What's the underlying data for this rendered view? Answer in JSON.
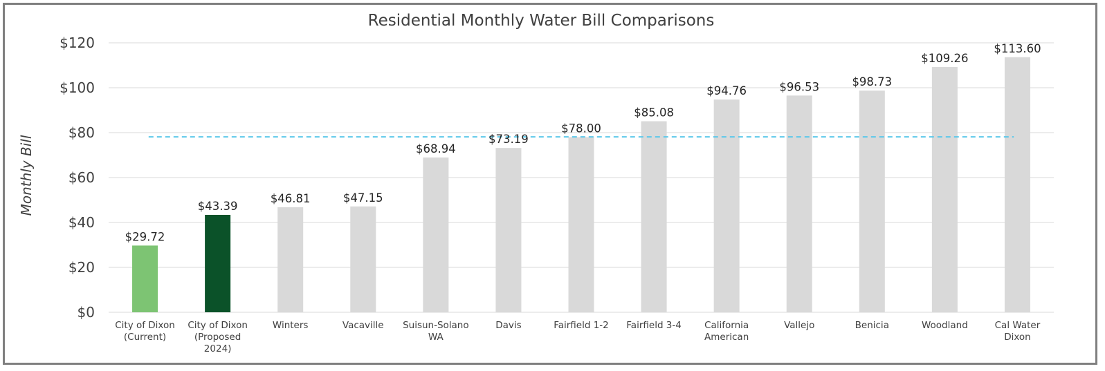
{
  "chart_data": {
    "type": "bar",
    "title": "Residential Monthly Water Bill Comparisons",
    "ylabel": "Monthly Bill",
    "xlabel": "",
    "ylim": [
      0,
      120
    ],
    "yticks": [
      0,
      20,
      40,
      60,
      80,
      100,
      120
    ],
    "ytick_labels": [
      "$0",
      "$20",
      "$40",
      "$60",
      "$80",
      "$100",
      "$120"
    ],
    "grid": true,
    "legend": "none",
    "categories": [
      [
        "City of Dixon",
        "(Current)"
      ],
      [
        "City of Dixon",
        "(Proposed",
        "2024)"
      ],
      [
        "Winters"
      ],
      [
        "Vacaville"
      ],
      [
        "Suisun-Solano",
        "WA"
      ],
      [
        "Davis"
      ],
      [
        "Fairfield 1-2"
      ],
      [
        "Fairfield 3-4"
      ],
      [
        "California",
        "American"
      ],
      [
        "Vallejo"
      ],
      [
        "Benicia"
      ],
      [
        "Woodland"
      ],
      [
        "Cal Water",
        "Dixon"
      ]
    ],
    "values": [
      29.72,
      43.39,
      46.81,
      47.15,
      68.94,
      73.19,
      78.0,
      85.08,
      94.76,
      96.53,
      98.73,
      109.26,
      113.6
    ],
    "data_labels": [
      "$29.72",
      "$43.39",
      "$46.81",
      "$47.15",
      "$68.94",
      "$73.19",
      "$78.00",
      "$85.08",
      "$94.76",
      "$96.53",
      "$98.73",
      "$109.26",
      "$113.60"
    ],
    "bar_colors": [
      "#7dc473",
      "#0b5229",
      "#d9d9d9",
      "#d9d9d9",
      "#d9d9d9",
      "#d9d9d9",
      "#d9d9d9",
      "#d9d9d9",
      "#d9d9d9",
      "#d9d9d9",
      "#d9d9d9",
      "#d9d9d9",
      "#d9d9d9"
    ],
    "reference_line": {
      "value": 78.1,
      "style": "dashed",
      "color": "#5bc8ea"
    },
    "colors": {
      "grid": "#d9d9d9",
      "axis": "#d9d9d9",
      "text": "#404040",
      "frame": "#7f7f7f"
    }
  }
}
